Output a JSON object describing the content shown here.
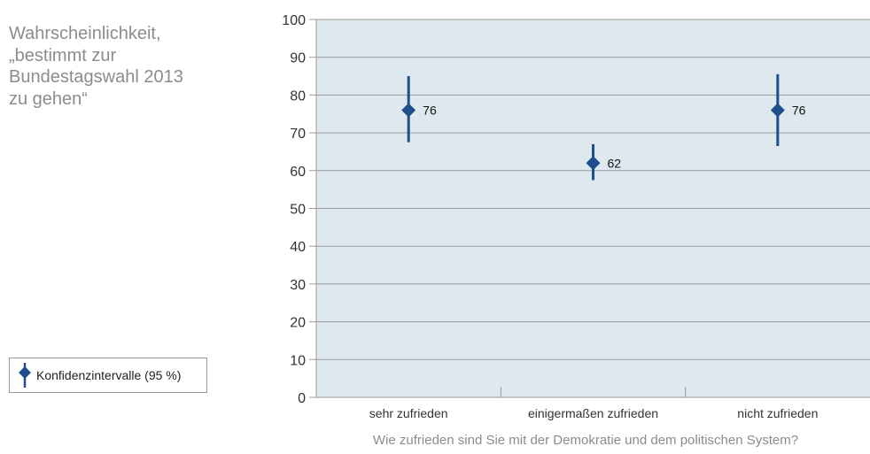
{
  "side_title": [
    "Wahrscheinlichkeit,",
    "„bestimmt zur",
    "Bundestagswahl 2013",
    "zu gehen“"
  ],
  "legend": {
    "label": "Konfidenzintervalle (95 %)",
    "icon": "diamond-with-error-bar-icon"
  },
  "colors": {
    "marker": "#1f4e8c",
    "plot_bg": "#dde9ef",
    "grid": "#9a9a9a",
    "muted_text": "#8c8c8c"
  },
  "chart_data": {
    "type": "scatter",
    "title": "",
    "xlabel": "Wie zufrieden sind Sie mit der Demokratie und dem politischen System?",
    "ylabel": "",
    "categories": [
      "sehr zufrieden",
      "einigermaßen zufrieden",
      "nicht zufrieden"
    ],
    "values": [
      76,
      62,
      76
    ],
    "ci_low": [
      67.5,
      57.5,
      66.5
    ],
    "ci_high": [
      85,
      67,
      85.5
    ],
    "data_labels": [
      "76",
      "62",
      "76"
    ],
    "ylim": [
      0,
      100
    ],
    "yticks": [
      0,
      10,
      20,
      30,
      40,
      50,
      60,
      70,
      80,
      90,
      100
    ],
    "grid": true,
    "legend_position": "bottom-left"
  }
}
